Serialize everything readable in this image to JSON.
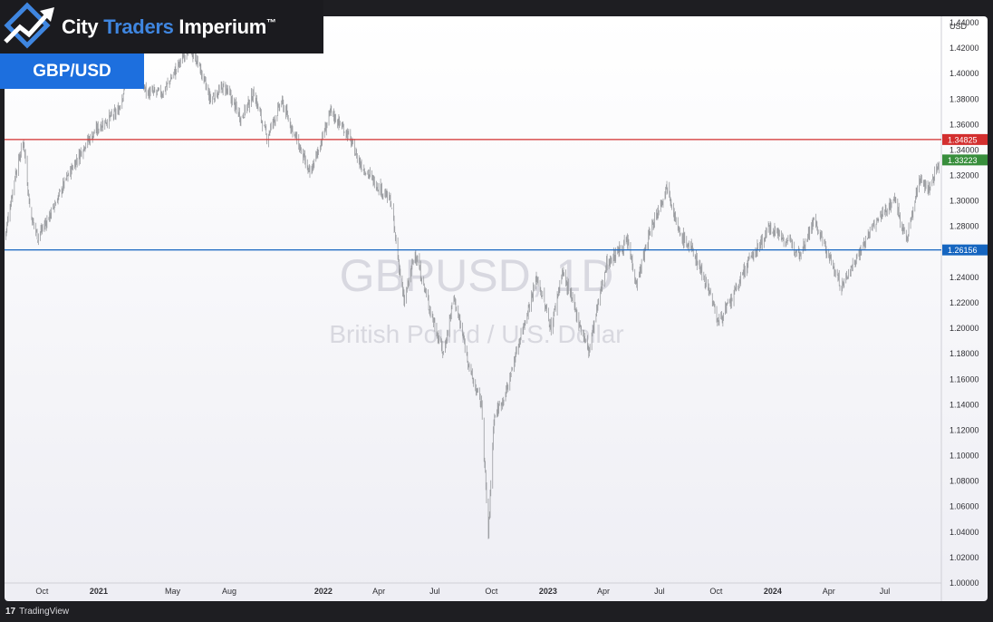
{
  "branding": {
    "name_part1": "City",
    "name_part2": "Traders",
    "name_part3": "Imperium",
    "trademark": "™",
    "pair_badge": "GBP/USD"
  },
  "footer": {
    "platform": "TradingView",
    "logo": "17"
  },
  "colors": {
    "price": "#9a9ca0",
    "resistance": "#d32f2f",
    "support": "#1565c0",
    "current": "#388e3c",
    "brand_accent": "#3f86e0",
    "badge": "#1d6fde"
  },
  "chart_data": {
    "type": "candlestick",
    "symbol": "GBPUSD",
    "timeframe": "1D",
    "watermark_title": "GBPUSD, 1D",
    "watermark_subtitle": "British Pound / U.S. Dollar",
    "currency": "USD",
    "ylim": [
      1.0,
      1.445
    ],
    "y_ticks": [
      "1.00000",
      "1.02000",
      "1.04000",
      "1.06000",
      "1.08000",
      "1.10000",
      "1.12000",
      "1.14000",
      "1.16000",
      "1.18000",
      "1.20000",
      "1.22000",
      "1.24000",
      "1.26000",
      "1.28000",
      "1.30000",
      "1.32000",
      "1.34000",
      "1.36000",
      "1.38000",
      "1.40000",
      "1.42000",
      "1.44000"
    ],
    "x_ticks": [
      {
        "label": "Oct",
        "date": "2020-10-01",
        "bold": false
      },
      {
        "label": "2021",
        "date": "2021-01-01",
        "bold": true
      },
      {
        "label": "May",
        "date": "2021-05-01",
        "bold": false
      },
      {
        "label": "Aug",
        "date": "2021-08-01",
        "bold": false
      },
      {
        "label": "2022",
        "date": "2022-01-01",
        "bold": true
      },
      {
        "label": "Apr",
        "date": "2022-04-01",
        "bold": false
      },
      {
        "label": "Jul",
        "date": "2022-07-01",
        "bold": false
      },
      {
        "label": "Oct",
        "date": "2022-10-01",
        "bold": false
      },
      {
        "label": "2023",
        "date": "2023-01-01",
        "bold": true
      },
      {
        "label": "Apr",
        "date": "2023-04-01",
        "bold": false
      },
      {
        "label": "Jul",
        "date": "2023-07-01",
        "bold": false
      },
      {
        "label": "Oct",
        "date": "2023-10-01",
        "bold": false
      },
      {
        "label": "2024",
        "date": "2024-01-01",
        "bold": true
      },
      {
        "label": "Apr",
        "date": "2024-04-01",
        "bold": false
      },
      {
        "label": "Jul",
        "date": "2024-07-01",
        "bold": false
      }
    ],
    "xlim": [
      "2020-08-01",
      "2024-09-28"
    ],
    "horizontal_lines": [
      {
        "name": "resistance",
        "value": 1.34825,
        "label": "1.34825",
        "color": "#d32f2f"
      },
      {
        "name": "support",
        "value": 1.26156,
        "label": "1.26156",
        "color": "#1565c0"
      }
    ],
    "current_price": {
      "value": 1.33223,
      "label": "1.33223",
      "color": "#388e3c"
    },
    "price_path": [
      {
        "date": "2020-08-01",
        "close": 1.27
      },
      {
        "date": "2020-08-18",
        "close": 1.32
      },
      {
        "date": "2020-09-01",
        "close": 1.347
      },
      {
        "date": "2020-09-12",
        "close": 1.29
      },
      {
        "date": "2020-09-24",
        "close": 1.272
      },
      {
        "date": "2020-10-15",
        "close": 1.29
      },
      {
        "date": "2020-11-10",
        "close": 1.318
      },
      {
        "date": "2020-12-10",
        "close": 1.345
      },
      {
        "date": "2021-01-05",
        "close": 1.36
      },
      {
        "date": "2021-02-01",
        "close": 1.37
      },
      {
        "date": "2021-02-24",
        "close": 1.41
      },
      {
        "date": "2021-03-20",
        "close": 1.385
      },
      {
        "date": "2021-04-15",
        "close": 1.385
      },
      {
        "date": "2021-05-03",
        "close": 1.4
      },
      {
        "date": "2021-05-25",
        "close": 1.42
      },
      {
        "date": "2021-06-10",
        "close": 1.41
      },
      {
        "date": "2021-07-01",
        "close": 1.38
      },
      {
        "date": "2021-07-25",
        "close": 1.39
      },
      {
        "date": "2021-08-20",
        "close": 1.365
      },
      {
        "date": "2021-09-10",
        "close": 1.385
      },
      {
        "date": "2021-10-01",
        "close": 1.35
      },
      {
        "date": "2021-10-25",
        "close": 1.378
      },
      {
        "date": "2021-11-25",
        "close": 1.34
      },
      {
        "date": "2021-12-10",
        "close": 1.32
      },
      {
        "date": "2022-01-13",
        "close": 1.37
      },
      {
        "date": "2022-02-10",
        "close": 1.352
      },
      {
        "date": "2022-03-01",
        "close": 1.33
      },
      {
        "date": "2022-03-20",
        "close": 1.318
      },
      {
        "date": "2022-04-20",
        "close": 1.3
      },
      {
        "date": "2022-05-12",
        "close": 1.22
      },
      {
        "date": "2022-05-30",
        "close": 1.26
      },
      {
        "date": "2022-06-20",
        "close": 1.22
      },
      {
        "date": "2022-07-15",
        "close": 1.18
      },
      {
        "date": "2022-08-01",
        "close": 1.225
      },
      {
        "date": "2022-08-31",
        "close": 1.16
      },
      {
        "date": "2022-09-15",
        "close": 1.14
      },
      {
        "date": "2022-09-26",
        "close": 1.037
      },
      {
        "date": "2022-10-05",
        "close": 1.13
      },
      {
        "date": "2022-10-25",
        "close": 1.15
      },
      {
        "date": "2022-11-15",
        "close": 1.19
      },
      {
        "date": "2022-12-14",
        "close": 1.24
      },
      {
        "date": "2023-01-06",
        "close": 1.2
      },
      {
        "date": "2023-01-24",
        "close": 1.245
      },
      {
        "date": "2023-03-08",
        "close": 1.182
      },
      {
        "date": "2023-04-05",
        "close": 1.25
      },
      {
        "date": "2023-05-10",
        "close": 1.268
      },
      {
        "date": "2023-05-25",
        "close": 1.235
      },
      {
        "date": "2023-06-15",
        "close": 1.275
      },
      {
        "date": "2023-07-14",
        "close": 1.313
      },
      {
        "date": "2023-08-01",
        "close": 1.275
      },
      {
        "date": "2023-08-25",
        "close": 1.26
      },
      {
        "date": "2023-09-20",
        "close": 1.23
      },
      {
        "date": "2023-10-04",
        "close": 1.205
      },
      {
        "date": "2023-10-24",
        "close": 1.22
      },
      {
        "date": "2023-11-20",
        "close": 1.25
      },
      {
        "date": "2023-12-10",
        "close": 1.265
      },
      {
        "date": "2023-12-28",
        "close": 1.28
      },
      {
        "date": "2024-01-20",
        "close": 1.27
      },
      {
        "date": "2024-02-15",
        "close": 1.26
      },
      {
        "date": "2024-03-08",
        "close": 1.285
      },
      {
        "date": "2024-03-25",
        "close": 1.265
      },
      {
        "date": "2024-04-22",
        "close": 1.232
      },
      {
        "date": "2024-05-10",
        "close": 1.25
      },
      {
        "date": "2024-06-12",
        "close": 1.28
      },
      {
        "date": "2024-07-17",
        "close": 1.302
      },
      {
        "date": "2024-08-05",
        "close": 1.268
      },
      {
        "date": "2024-08-28",
        "close": 1.32
      },
      {
        "date": "2024-09-10",
        "close": 1.308
      },
      {
        "date": "2024-09-28",
        "close": 1.332
      }
    ]
  }
}
